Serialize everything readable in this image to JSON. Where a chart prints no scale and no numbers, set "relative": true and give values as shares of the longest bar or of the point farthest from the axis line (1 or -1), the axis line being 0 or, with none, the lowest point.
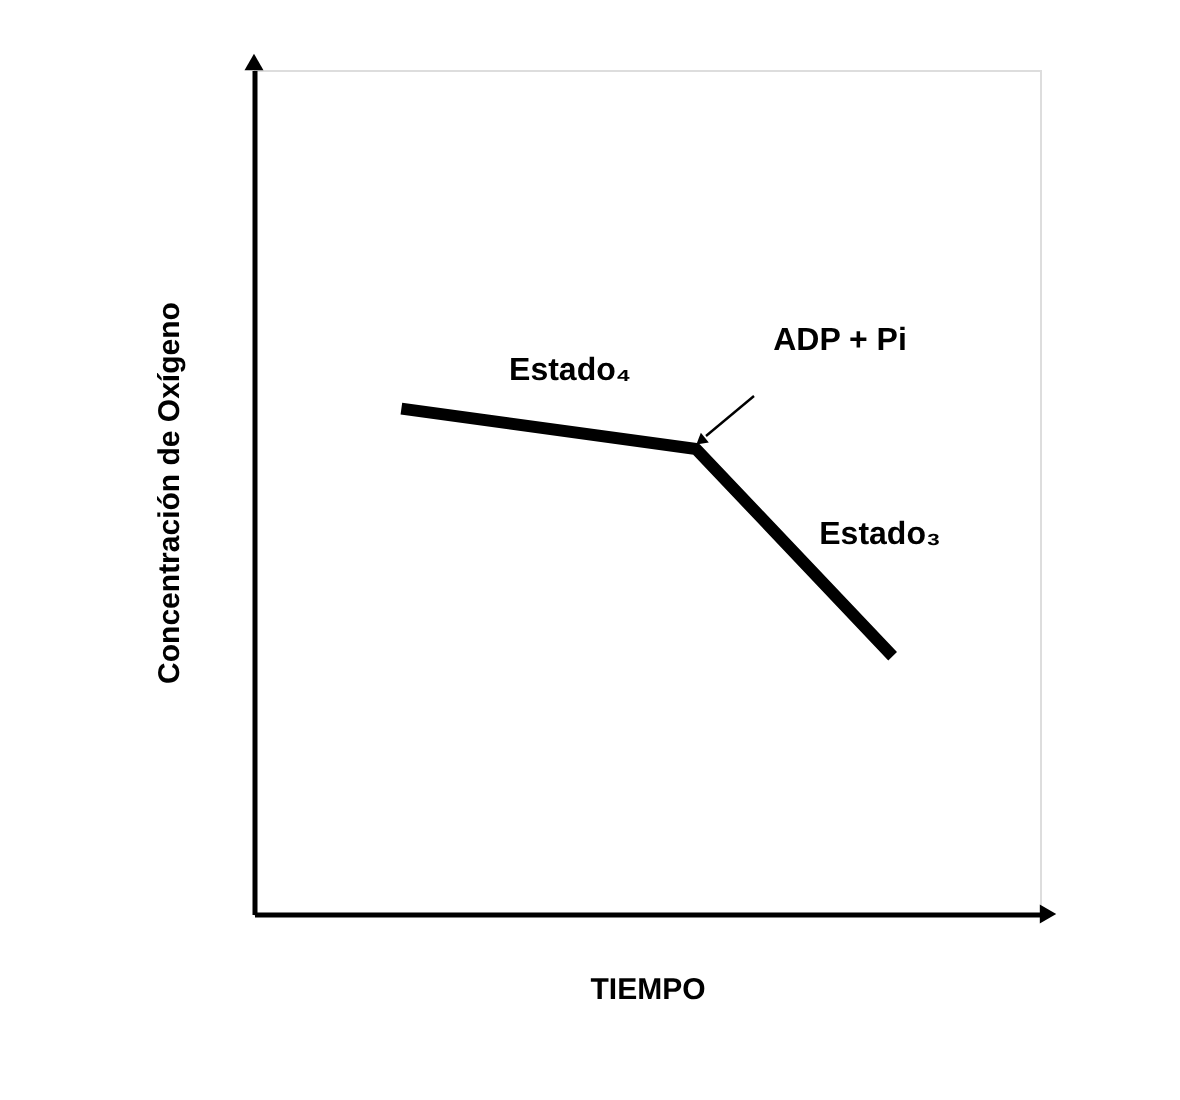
{
  "chart_data": {
    "type": "line",
    "xlabel": "TIEMPO",
    "ylabel": "Concentración  de Oxígeno",
    "categories": [
      null,
      null,
      null,
      null,
      null,
      null,
      null,
      null
    ],
    "relative": true,
    "series": [
      {
        "color": "#000000",
        "values": [
          null,
          1,
          null,
          null,
          0.92,
          null,
          0.51,
          null
        ]
      }
    ],
    "annotations": [
      "Estado₄",
      "ADP + Pi",
      "Estado₃"
    ],
    "grid": false,
    "tick_labels": false,
    "marker": "none",
    "line_style": "solid"
  }
}
